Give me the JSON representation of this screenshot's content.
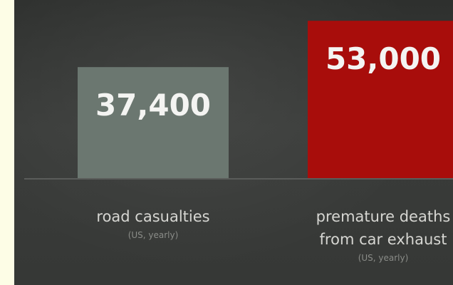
{
  "chart_data": {
    "type": "bar",
    "categories": [
      "road casualties",
      "premature deaths from car exhaust"
    ],
    "category_lines": [
      [
        "road casualties"
      ],
      [
        "premature deaths",
        "from car exhaust"
      ]
    ],
    "category_notes": [
      "(US, yearly)",
      "(US, yearly)"
    ],
    "values": [
      37400,
      53000
    ],
    "value_labels": [
      "37,400",
      "53,000"
    ],
    "bar_colors": [
      "#6b7770",
      "#a80d0b"
    ],
    "ylim": [
      0,
      60000
    ],
    "grid": false,
    "title": "",
    "xlabel": "",
    "ylabel": ""
  },
  "colors": {
    "background": "#363836",
    "baseline": "#5a5c5a",
    "page_border": "#fdfde6"
  }
}
